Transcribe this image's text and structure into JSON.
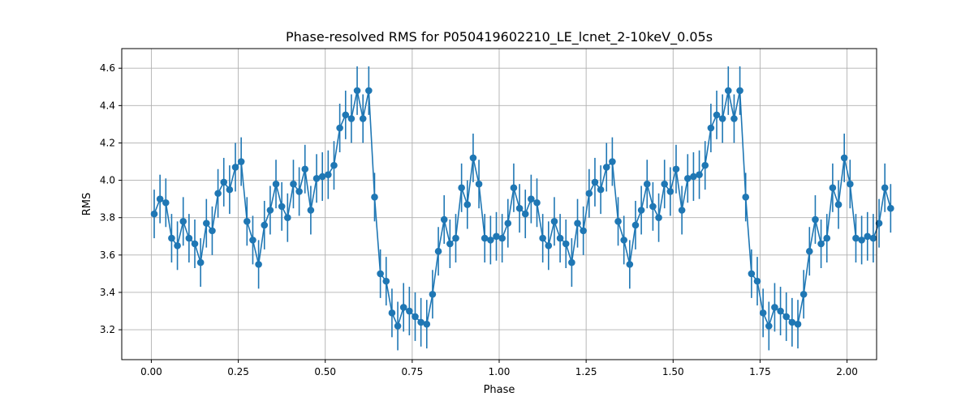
{
  "chart_data": {
    "type": "line",
    "title": "Phase-resolved RMS for P050419602210_LE_lcnet_2-10keV_0.05s",
    "xlabel": "Phase",
    "ylabel": "RMS",
    "xlim": [
      -0.085,
      2.085
    ],
    "ylim": [
      3.04,
      4.705
    ],
    "xticks": [
      0.0,
      0.25,
      0.5,
      0.75,
      1.0,
      1.25,
      1.5,
      1.75,
      2.0
    ],
    "xtick_labels": [
      "0.00",
      "0.25",
      "0.50",
      "0.75",
      "1.00",
      "1.25",
      "1.50",
      "1.75",
      "2.00"
    ],
    "yticks": [
      3.2,
      3.4,
      3.6,
      3.8,
      4.0,
      4.2,
      4.4,
      4.6
    ],
    "ytick_labels": [
      "3.2",
      "3.4",
      "3.6",
      "3.8",
      "4.0",
      "4.2",
      "4.4",
      "4.6"
    ],
    "grid": true,
    "legend": false,
    "colors": {
      "series": "#1f77b4",
      "grid": "#b0b0b0",
      "axes": "#000000"
    },
    "error_bar": 0.13,
    "series": [
      {
        "x_start": 0.00833,
        "x_step": 0.01667,
        "values": [
          3.82,
          3.9,
          3.88,
          3.69,
          3.65,
          3.78,
          3.69,
          3.66,
          3.56,
          3.77,
          3.73,
          3.93,
          3.99,
          3.95,
          4.07,
          4.1,
          3.78,
          3.68,
          3.55,
          3.76,
          3.84,
          3.98,
          3.86,
          3.8,
          3.98,
          3.94,
          4.06,
          3.84,
          4.01,
          4.02,
          4.03,
          4.08,
          4.28,
          4.35,
          4.33,
          4.48,
          4.33,
          4.48,
          3.91,
          3.5,
          3.46,
          3.29,
          3.22,
          3.32,
          3.3,
          3.27,
          3.24,
          3.23,
          3.39,
          3.62,
          3.79,
          3.66,
          3.69,
          3.96,
          3.87,
          4.12,
          3.98,
          3.69,
          3.68,
          3.7,
          3.69,
          3.77,
          3.96,
          3.85,
          3.82,
          3.9,
          3.88,
          3.69,
          3.65,
          3.78,
          3.69,
          3.66,
          3.56,
          3.77,
          3.73,
          3.93,
          3.99,
          3.95,
          4.07,
          4.1,
          3.78,
          3.68,
          3.55,
          3.76,
          3.84,
          3.98,
          3.86,
          3.8,
          3.98,
          3.94,
          4.06,
          3.84,
          4.01,
          4.02,
          4.03,
          4.08,
          4.28,
          4.35,
          4.33,
          4.48,
          4.33,
          4.48,
          3.91,
          3.5,
          3.46,
          3.29,
          3.22,
          3.32,
          3.3,
          3.27,
          3.24,
          3.23,
          3.39,
          3.62,
          3.79,
          3.66,
          3.69,
          3.96,
          3.87,
          4.12,
          3.98,
          3.69,
          3.68,
          3.7,
          3.69,
          3.77,
          3.96,
          3.85
        ]
      }
    ]
  }
}
